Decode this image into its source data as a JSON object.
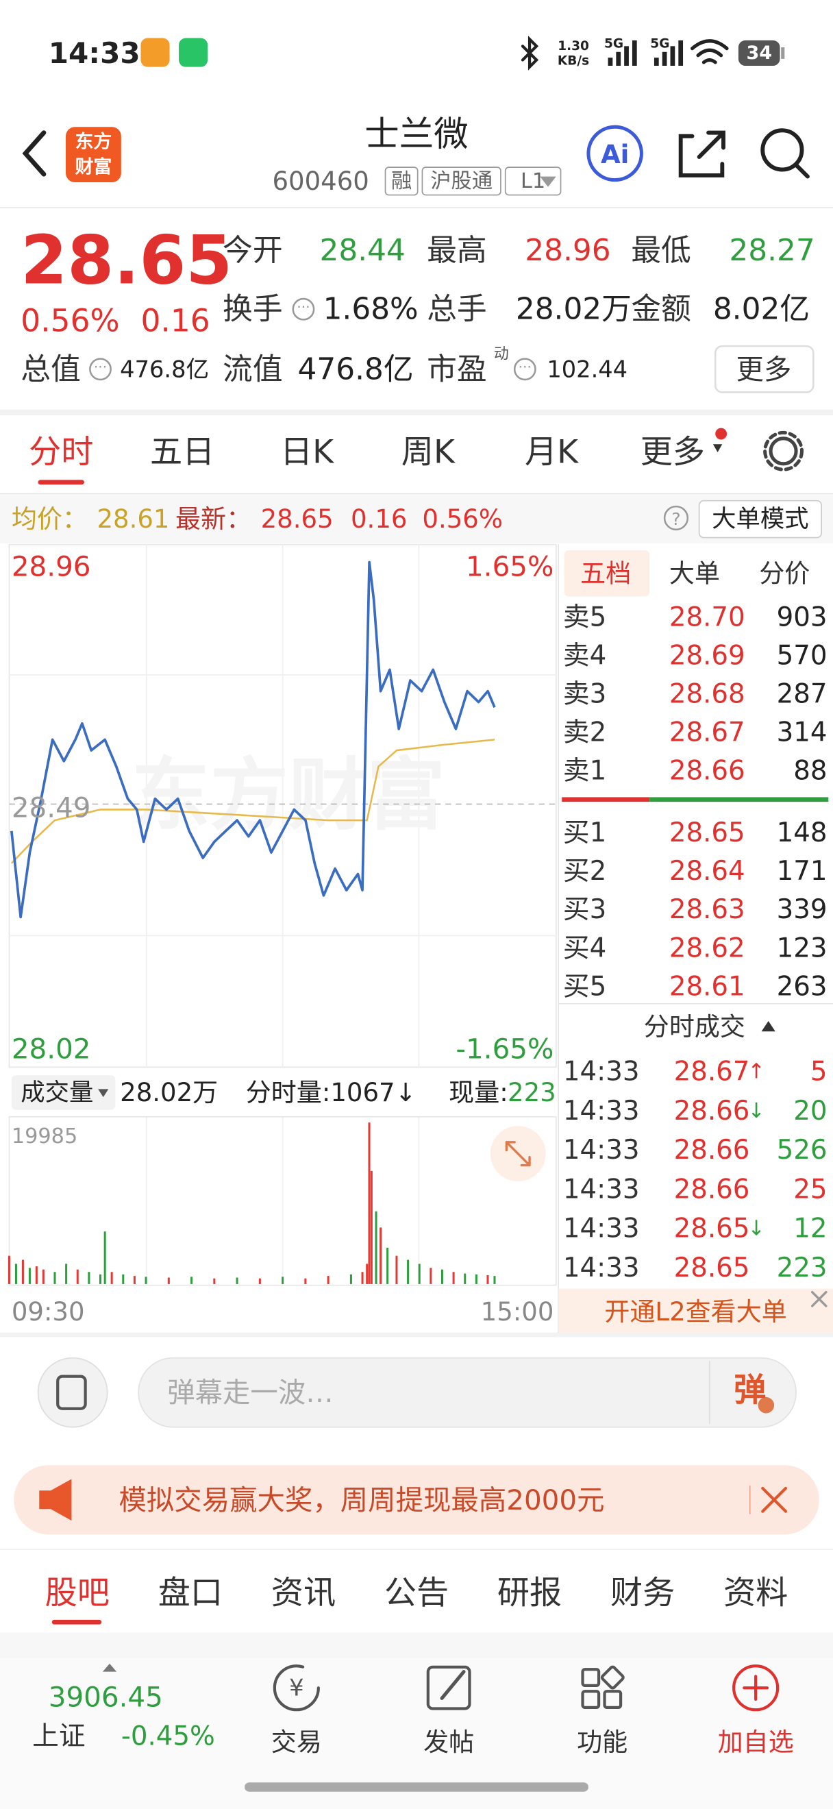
{
  "status": {
    "time": "14:33",
    "net_speed": "1.30",
    "net_unit": "KB/s",
    "signal1": "5G",
    "signal2": "5G",
    "battery": "34"
  },
  "header": {
    "logo": [
      "东方",
      "财富"
    ],
    "name": "士兰微",
    "code": "600460",
    "tags": [
      "融",
      "沪股通",
      "L1"
    ]
  },
  "quote": {
    "price": "28.65",
    "change_pct": "0.56%",
    "change": "0.16",
    "pe_note": "动",
    "more": "更多",
    "fields": [
      {
        "label": "今开",
        "value": "28.44",
        "color": "#2e9e3e"
      },
      {
        "label": "最高",
        "value": "28.96",
        "color": "#e0312e"
      },
      {
        "label": "最低",
        "value": "28.27",
        "color": "#2e9e3e"
      },
      {
        "label": "换手",
        "value": "1.68%",
        "color": "#222222"
      },
      {
        "label": "总手",
        "value": "28.02万",
        "color": "#222222"
      },
      {
        "label": "金额",
        "value": "8.02亿",
        "color": "#222222"
      },
      {
        "label": "总值",
        "value": "476.8亿",
        "color": "#222222"
      },
      {
        "label": "流值",
        "value": "476.8亿",
        "color": "#222222"
      },
      {
        "label": "市盈",
        "value": "102.44",
        "color": "#222222"
      }
    ]
  },
  "tabs": [
    "分时",
    "五日",
    "日K",
    "周K",
    "月K",
    "更多"
  ],
  "infobar": {
    "avg_label": "均价：",
    "avg": "28.61",
    "last_label": "最新：",
    "last": "28.65",
    "change": "0.16",
    "change_pct": "0.56%",
    "help": "?",
    "mode": "大单模式"
  },
  "intraday": {
    "type": "line",
    "watermark": "东方财富",
    "ylim": [
      28.02,
      28.96
    ],
    "xlim": [
      0,
      240
    ],
    "prev_close": 28.49,
    "pct_top": "1.65%",
    "pct_bottom": "-1.65%",
    "x_start": "09:30",
    "x_end": "15:00",
    "price": {
      "color": "#3a6cc2",
      "x": [
        1,
        5,
        9,
        14,
        19,
        24,
        29,
        32,
        36,
        42,
        47,
        52,
        56,
        59,
        64,
        69,
        74,
        79,
        85,
        90,
        95,
        100,
        105,
        110,
        115,
        120,
        125,
        130,
        134,
        138,
        143,
        148,
        153,
        155,
        158,
        160,
        163,
        167,
        171,
        176,
        181,
        186,
        191,
        196,
        201,
        206,
        210,
        213
      ],
      "values": [
        28.44,
        28.28,
        28.4,
        28.5,
        28.61,
        28.57,
        28.61,
        28.64,
        28.59,
        28.61,
        28.56,
        28.5,
        28.48,
        28.42,
        28.5,
        28.48,
        28.5,
        28.44,
        28.39,
        28.42,
        28.44,
        28.46,
        28.43,
        28.46,
        28.4,
        28.44,
        28.48,
        28.46,
        28.38,
        28.32,
        28.37,
        28.33,
        28.36,
        28.33,
        28.94,
        28.87,
        28.7,
        28.74,
        28.63,
        28.72,
        28.7,
        28.74,
        28.68,
        28.63,
        28.7,
        28.68,
        28.7,
        28.67
      ]
    },
    "avg": {
      "color": "#e8b84a",
      "x": [
        1,
        10,
        20,
        40,
        60,
        100,
        140,
        157,
        162,
        170,
        190,
        213
      ],
      "values": [
        28.38,
        28.42,
        28.46,
        28.48,
        28.48,
        28.47,
        28.46,
        28.46,
        28.56,
        28.59,
        28.6,
        28.61
      ]
    },
    "volume": {
      "ylim": [
        0,
        19985
      ],
      "x": [
        0,
        3,
        6,
        9,
        12,
        15,
        20,
        25,
        30,
        35,
        40,
        42,
        45,
        50,
        55,
        60,
        70,
        80,
        90,
        100,
        110,
        120,
        130,
        140,
        150,
        155,
        157,
        158,
        159,
        161,
        163,
        166,
        170,
        175,
        180,
        185,
        190,
        195,
        200,
        205,
        210,
        213
      ],
      "values": [
        3500,
        2500,
        3000,
        2000,
        2200,
        1800,
        1500,
        2500,
        1800,
        1500,
        1200,
        6500,
        1500,
        1200,
        1000,
        900,
        800,
        900,
        700,
        800,
        700,
        900,
        700,
        1000,
        1200,
        1500,
        2500,
        19985,
        14000,
        9000,
        7000,
        4500,
        3500,
        3000,
        2500,
        2000,
        1800,
        1500,
        1300,
        1200,
        1100,
        1000
      ],
      "colors": [
        "#e53935",
        "#2e9e3e",
        "#e53935",
        "#2e9e3e",
        "#e53935",
        "#e53935",
        "#2e9e3e",
        "#2e9e3e",
        "#e53935",
        "#2e9e3e",
        "#2e9e3e",
        "#2e9e3e",
        "#e53935",
        "#2e9e3e",
        "#e53935",
        "#2e9e3e",
        "#e53935",
        "#2e9e3e",
        "#e53935",
        "#2e9e3e",
        "#e53935",
        "#2e9e3e",
        "#e53935",
        "#e53935",
        "#2e9e3e",
        "#e53935",
        "#e53935",
        "#e53935",
        "#e53935",
        "#2e9e3e",
        "#e53935",
        "#2e9e3e",
        "#e53935",
        "#2e9e3e",
        "#2e9e3e",
        "#e53935",
        "#2e9e3e",
        "#e53935",
        "#2e9e3e",
        "#2e9e3e",
        "#e53935",
        "#2e9e3e"
      ]
    },
    "volume_bar": {
      "label": "成交量",
      "total": "28.02万",
      "minute_label": "分时量:1067↓",
      "now_label": "现量:",
      "now": "223"
    }
  },
  "orderbook": {
    "tabs": [
      "五档",
      "大单",
      "分价"
    ],
    "asks": [
      {
        "label": "卖5",
        "price": "28.70",
        "volume": "903"
      },
      {
        "label": "卖4",
        "price": "28.69",
        "volume": "570"
      },
      {
        "label": "卖3",
        "price": "28.68",
        "volume": "287"
      },
      {
        "label": "卖2",
        "price": "28.67",
        "volume": "314"
      },
      {
        "label": "卖1",
        "price": "28.66",
        "volume": "88"
      }
    ],
    "bids": [
      {
        "label": "买1",
        "price": "28.65",
        "volume": "148"
      },
      {
        "label": "买2",
        "price": "28.64",
        "volume": "171"
      },
      {
        "label": "买3",
        "price": "28.63",
        "volume": "339"
      },
      {
        "label": "买4",
        "price": "28.62",
        "volume": "123"
      },
      {
        "label": "买5",
        "price": "28.61",
        "volume": "263"
      }
    ]
  },
  "trades": {
    "title": "分时成交",
    "rows": [
      {
        "time": "14:33",
        "price": "28.67",
        "dir": "↑",
        "volume": "5",
        "color": "#e0312e",
        "dir_color": "#e0312e"
      },
      {
        "time": "14:33",
        "price": "28.66",
        "dir": "↓",
        "volume": "20",
        "color": "#2e9e3e",
        "dir_color": "#2e9e3e"
      },
      {
        "time": "14:33",
        "price": "28.66",
        "volume": "526",
        "color": "#2e9e3e"
      },
      {
        "time": "14:33",
        "price": "28.66",
        "volume": "25",
        "color": "#e0312e"
      },
      {
        "time": "14:33",
        "price": "28.65",
        "dir": "↓",
        "volume": "12",
        "color": "#2e9e3e",
        "dir_color": "#2e9e3e"
      },
      {
        "time": "14:33",
        "price": "28.65",
        "volume": "223",
        "color": "#2e9e3e"
      }
    ]
  },
  "l2": "开通L2查看大单",
  "comment": {
    "placeholder": "弹幕走一波…",
    "button": "弹"
  },
  "banner": "模拟交易赢大奖，周周提现最高2000元",
  "bottom_tabs": [
    "股吧",
    "盘口",
    "资讯",
    "公告",
    "研报",
    "财务",
    "资料"
  ],
  "nav": {
    "index_value": "3906.45",
    "index_name": "上证",
    "index_change": "-0.45%",
    "items": [
      "交易",
      "发帖",
      "功能",
      "加自选"
    ]
  }
}
